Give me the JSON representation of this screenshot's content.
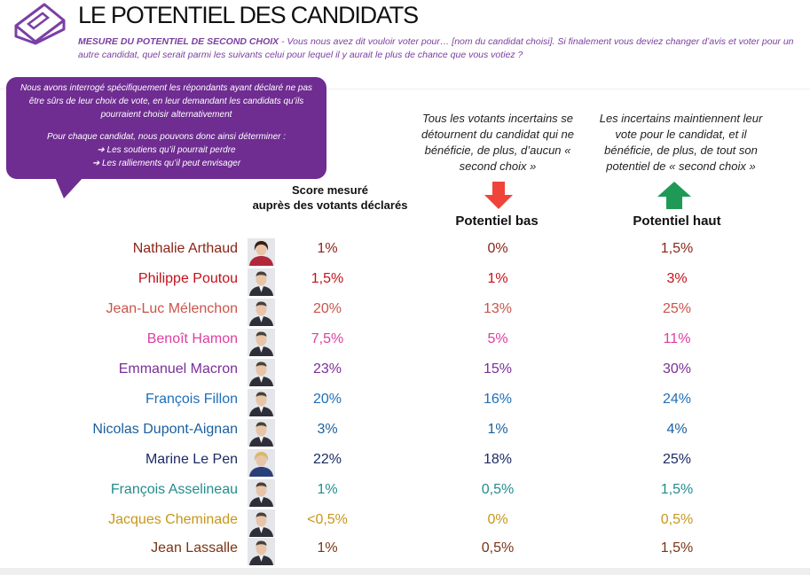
{
  "header": {
    "title": "LE POTENTIEL DES CANDIDATS",
    "subtitle_bold": "MESURE DU POTENTIEL DE SECOND CHOIX",
    "subtitle_rest": " - Vous nous avez dit vouloir voter pour… [nom du candidat choisi]. Si finalement vous deviez changer d’avis et voter pour un autre candidat, quel serait parmi les suivants celui pour lequel il y aurait le plus de chance que vous votiez ?"
  },
  "bubble": {
    "para1": "Nous avons interrogé spécifiquement les répondants ayant déclaré ne pas être sûrs de leur choix de vote, en leur demandant les candidats qu’ils pourraient choisir alternativement",
    "para2": "Pour chaque candidat, nous pouvons donc ainsi déterminer :",
    "bullet1": "➔ Les soutiens qu’il pourrait perdre",
    "bullet2": "➔ Les ralliements qu’il peut envisager"
  },
  "columns": {
    "score_line1": "Score  mesuré",
    "score_line2": "auprès des votants déclarés",
    "low_desc": "Tous les votants incertains se détournent du candidat qui ne bénéficie, de plus, d’aucun « second choix »",
    "low_label": "Potentiel bas",
    "high_desc": "Les incertains maintiennent leur vote pour le candidat, et il bénéficie, de plus, de tout son potentiel de « second choix »",
    "high_label": "Potentiel haut"
  },
  "colors": {
    "accent": "#6f2c91",
    "arrow_down": "#f0433a",
    "arrow_up": "#1e9a56"
  },
  "candidates": [
    {
      "name": "Nathalie Arthaud",
      "score": "1%",
      "low": "0%",
      "high": "1,5%",
      "color": "#8b2417",
      "photo": "female-dark-hair-portrait"
    },
    {
      "name": "Philippe Poutou",
      "score": "1,5%",
      "low": "1%",
      "high": "3%",
      "color": "#c4101a",
      "photo": "male-portrait"
    },
    {
      "name": "Jean-Luc Mélenchon",
      "score": "20%",
      "low": "13%",
      "high": "25%",
      "color": "#c8554b",
      "photo": "male-portrait"
    },
    {
      "name": "Benoît Hamon",
      "score": "7,5%",
      "low": "5%",
      "high": "11%",
      "color": "#dd3fa0",
      "photo": "male-portrait"
    },
    {
      "name": "Emmanuel Macron",
      "score": "23%",
      "low": "15%",
      "high": "30%",
      "color": "#7a2f97",
      "photo": "male-portrait"
    },
    {
      "name": "François Fillon",
      "score": "20%",
      "low": "16%",
      "high": "24%",
      "color": "#1e6fb8",
      "photo": "male-portrait"
    },
    {
      "name": "Nicolas Dupont-Aignan",
      "score": "3%",
      "low": "1%",
      "high": "4%",
      "color": "#1a5f9e",
      "photo": "male-portrait"
    },
    {
      "name": "Marine Le Pen",
      "score": "22%",
      "low": "18%",
      "high": "25%",
      "color": "#1c2a63",
      "photo": "female-blonde-portrait"
    },
    {
      "name": "François Asselineau",
      "score": "1%",
      "low": "0,5%",
      "high": "1,5%",
      "color": "#238c8c",
      "photo": "male-portrait"
    },
    {
      "name": "Jacques Cheminade",
      "score": "<0,5%",
      "low": "0%",
      "high": "0,5%",
      "color": "#c7971a",
      "photo": "male-portrait"
    },
    {
      "name": "Jean Lassalle",
      "score": "1%",
      "low": "0,5%",
      "high": "1,5%",
      "color": "#7a3414",
      "photo": "male-portrait"
    }
  ]
}
